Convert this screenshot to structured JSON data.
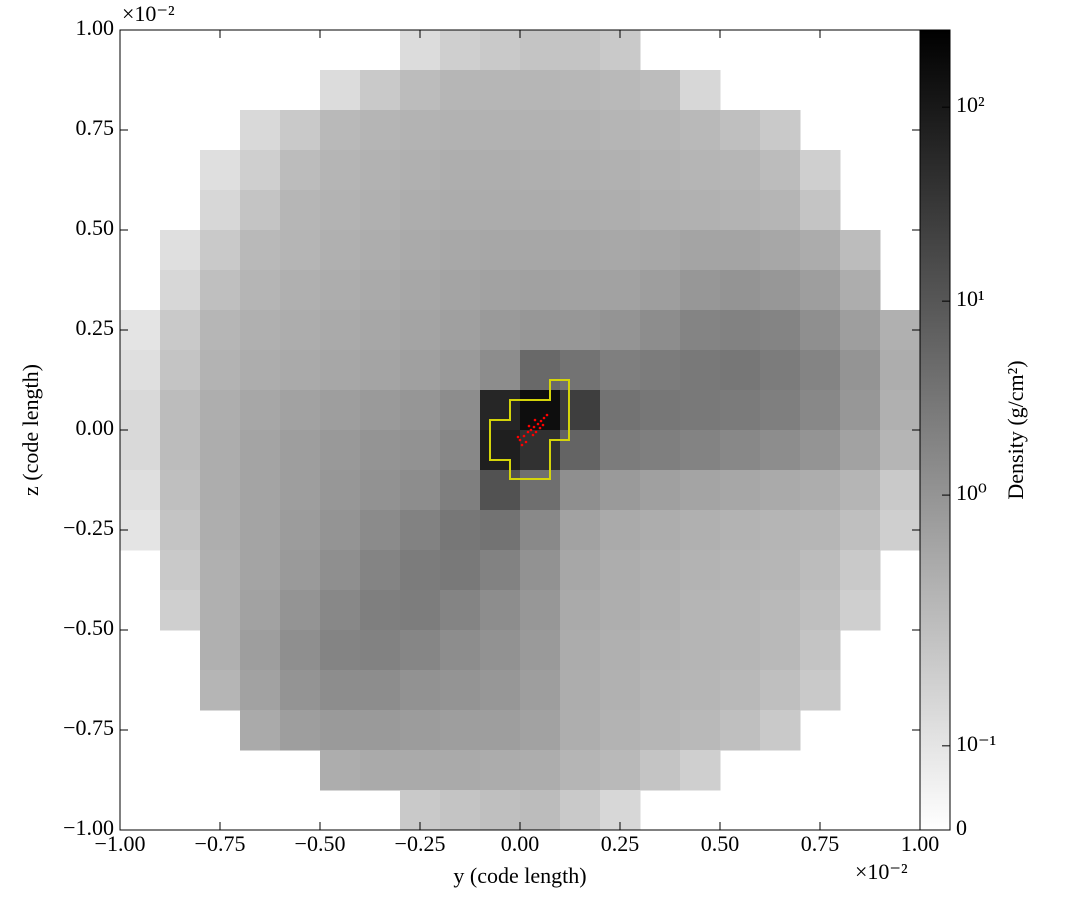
{
  "chart_data": {
    "type": "heatmap",
    "x_label": "y  (code length)",
    "y_label": "z  (code length)",
    "x_offset": "×10⁻²",
    "y_offset": "×10⁻²",
    "colorbar_label": "Density  (g/cm²)",
    "xlim": [
      -1,
      1
    ],
    "ylim": [
      -1,
      1
    ],
    "xticks": [
      {
        "value": -1,
        "label": "−1.00"
      },
      {
        "value": -0.75,
        "label": "−0.75"
      },
      {
        "value": -0.5,
        "label": "−0.50"
      },
      {
        "value": -0.25,
        "label": "−0.25"
      },
      {
        "value": 0,
        "label": "0.00"
      },
      {
        "value": 0.25,
        "label": "0.25"
      },
      {
        "value": 0.5,
        "label": "0.50"
      },
      {
        "value": 0.75,
        "label": "0.75"
      },
      {
        "value": 1,
        "label": "1.00"
      }
    ],
    "yticks": [
      {
        "value": -1,
        "label": "−1.00"
      },
      {
        "value": -0.75,
        "label": "−0.75"
      },
      {
        "value": -0.5,
        "label": "−0.50"
      },
      {
        "value": -0.25,
        "label": "−0.25"
      },
      {
        "value": 0,
        "label": "0.00"
      },
      {
        "value": 0.25,
        "label": "0.25"
      },
      {
        "value": 0.5,
        "label": "0.50"
      },
      {
        "value": 0.75,
        "label": "0.75"
      },
      {
        "value": 1,
        "label": "1.00"
      }
    ],
    "clim": [
      0,
      250
    ],
    "color_scale": "symlog",
    "cticks": [
      0,
      {
        "value": 0.1,
        "label": "10⁻¹"
      },
      {
        "value": 1,
        "label": "10⁰"
      },
      {
        "value": 10,
        "label": "10¹"
      },
      {
        "value": 100,
        "label": "10²"
      }
    ],
    "x": [
      -0.95,
      -0.85,
      -0.75,
      -0.65,
      -0.55,
      -0.45,
      -0.35,
      -0.25,
      -0.15,
      -0.05,
      0.05,
      0.15,
      0.25,
      0.35,
      0.45,
      0.55,
      0.65,
      0.75,
      0.85,
      0.95
    ],
    "y": [
      0.95,
      0.85,
      0.75,
      0.65,
      0.55,
      0.45,
      0.35,
      0.25,
      0.15,
      0.05,
      -0.05,
      -0.15,
      -0.25,
      -0.35,
      -0.45,
      -0.55,
      -0.65,
      -0.75,
      -0.85,
      -0.95
    ],
    "values": [
      [
        null,
        null,
        null,
        null,
        null,
        null,
        null,
        0.13,
        0.18,
        0.2,
        0.22,
        0.22,
        0.2,
        null,
        null,
        null,
        null,
        null,
        null,
        null
      ],
      [
        null,
        null,
        null,
        null,
        null,
        0.13,
        0.2,
        0.25,
        0.28,
        0.28,
        0.28,
        0.27,
        0.26,
        0.25,
        0.15,
        null,
        null,
        null,
        null,
        null
      ],
      [
        null,
        null,
        null,
        0.14,
        0.2,
        0.26,
        0.3,
        0.32,
        0.33,
        0.33,
        0.33,
        0.32,
        0.3,
        0.28,
        0.26,
        0.24,
        0.2,
        null,
        null,
        null
      ],
      [
        null,
        null,
        0.12,
        0.18,
        0.25,
        0.3,
        0.33,
        0.36,
        0.38,
        0.38,
        0.37,
        0.36,
        0.34,
        0.32,
        0.3,
        0.28,
        0.25,
        0.18,
        null,
        null
      ],
      [
        null,
        null,
        0.15,
        0.22,
        0.28,
        0.32,
        0.36,
        0.4,
        0.42,
        0.42,
        0.42,
        0.4,
        0.38,
        0.36,
        0.34,
        0.32,
        0.3,
        0.22,
        null,
        null
      ],
      [
        null,
        0.12,
        0.2,
        0.26,
        0.3,
        0.35,
        0.4,
        0.45,
        0.48,
        0.5,
        0.5,
        0.5,
        0.48,
        0.5,
        0.55,
        0.55,
        0.5,
        0.42,
        0.25,
        null
      ],
      [
        null,
        0.15,
        0.24,
        0.3,
        0.35,
        0.4,
        0.45,
        0.5,
        0.55,
        0.6,
        0.62,
        0.6,
        0.6,
        0.7,
        0.9,
        1.0,
        0.9,
        0.7,
        0.4,
        null
      ],
      [
        0.1,
        0.2,
        0.28,
        0.35,
        0.4,
        0.45,
        0.5,
        0.55,
        0.65,
        0.8,
        0.9,
        0.9,
        1.0,
        1.3,
        1.8,
        2.0,
        1.8,
        1.2,
        0.7,
        0.35
      ],
      [
        0.12,
        0.22,
        0.32,
        0.4,
        0.45,
        0.5,
        0.55,
        0.65,
        0.8,
        1.3,
        5.0,
        3.5,
        2.2,
        2.5,
        2.8,
        3.0,
        2.5,
        1.8,
        1.0,
        0.4
      ],
      [
        0.14,
        0.25,
        0.38,
        0.5,
        0.6,
        0.7,
        0.8,
        0.95,
        1.3,
        60,
        150,
        25,
        3.5,
        3.0,
        2.8,
        2.6,
        2.2,
        1.6,
        0.9,
        0.35
      ],
      [
        0.14,
        0.25,
        0.4,
        0.55,
        0.7,
        0.85,
        1.0,
        1.1,
        1.6,
        80,
        40,
        6.0,
        2.5,
        2.2,
        1.9,
        1.6,
        1.3,
        1.0,
        0.6,
        0.3
      ],
      [
        0.12,
        0.24,
        0.4,
        0.55,
        0.7,
        0.9,
        1.1,
        1.3,
        2.2,
        12,
        4.0,
        1.2,
        0.8,
        0.65,
        0.55,
        0.5,
        0.45,
        0.4,
        0.3,
        0.2
      ],
      [
        0.1,
        0.22,
        0.38,
        0.55,
        0.75,
        1.0,
        1.4,
        2.0,
        3.0,
        3.5,
        1.5,
        0.6,
        0.45,
        0.4,
        0.35,
        0.32,
        0.3,
        0.28,
        0.24,
        0.18
      ],
      [
        null,
        0.2,
        0.35,
        0.55,
        0.8,
        1.2,
        1.8,
        2.5,
        2.8,
        2.0,
        1.1,
        0.5,
        0.4,
        0.35,
        0.32,
        0.3,
        0.28,
        0.25,
        0.2,
        null
      ],
      [
        null,
        0.18,
        0.35,
        0.6,
        1.0,
        1.6,
        2.2,
        2.4,
        1.8,
        1.3,
        0.9,
        0.45,
        0.38,
        0.34,
        0.3,
        0.28,
        0.26,
        0.24,
        0.18,
        null
      ],
      [
        null,
        null,
        0.35,
        0.7,
        1.2,
        1.8,
        2.0,
        1.7,
        1.3,
        1.1,
        0.8,
        0.42,
        0.36,
        0.32,
        0.3,
        0.28,
        0.26,
        0.22,
        null,
        null
      ],
      [
        null,
        null,
        0.3,
        0.6,
        1.0,
        1.3,
        1.3,
        1.1,
        1.0,
        0.9,
        0.7,
        0.4,
        0.34,
        0.3,
        0.28,
        0.26,
        0.24,
        0.2,
        null,
        null
      ],
      [
        null,
        null,
        null,
        0.45,
        0.7,
        0.8,
        0.8,
        0.75,
        0.7,
        0.7,
        0.6,
        0.38,
        0.32,
        0.28,
        0.26,
        0.24,
        0.2,
        null,
        null,
        null
      ],
      [
        null,
        null,
        null,
        null,
        null,
        0.4,
        0.45,
        0.45,
        0.45,
        0.42,
        0.4,
        0.3,
        0.26,
        0.22,
        0.18,
        null,
        null,
        null,
        null,
        null
      ],
      [
        null,
        null,
        null,
        null,
        null,
        null,
        null,
        0.2,
        0.22,
        0.24,
        0.25,
        0.2,
        0.15,
        null,
        null,
        null,
        null,
        null,
        null,
        null
      ]
    ]
  }
}
